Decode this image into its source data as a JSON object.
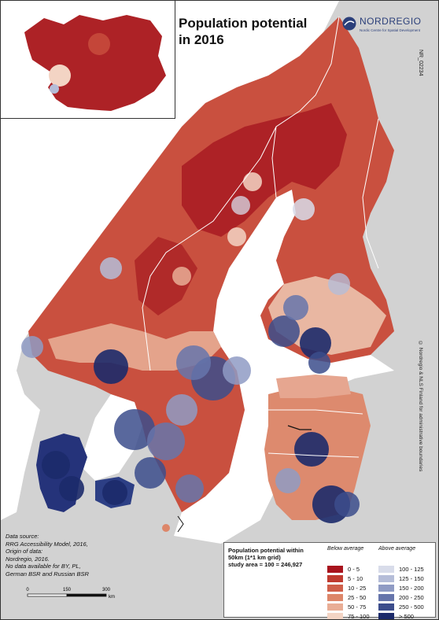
{
  "title": "Population potential\nin 2016",
  "logo": {
    "name": "NORDREGIO",
    "subtitle": "Nordic Centre for Spatial Development"
  },
  "map_id": "NR_02234",
  "credit": "© Nordregio & NLS Finland for administrative boundaries",
  "source_lines": [
    "Data source:",
    "RRG Accessibility Model, 2016,",
    "Origin of data:",
    "Nordregio, 2016.",
    "No data available for BY, PL,",
    "German BSR and Russian BSR"
  ],
  "scalebar": {
    "ticks": [
      "0",
      "150",
      "300"
    ],
    "unit": "km"
  },
  "legend": {
    "title_lines": [
      "Population potential within",
      "50km (1*1 km grid)",
      "study area = 100 = 246,927"
    ],
    "below_label": "Below average",
    "above_label": "Above average",
    "below": [
      {
        "label": "0 - 5",
        "color": "#a8131d"
      },
      {
        "label": "5 - 10",
        "color": "#bf3a2f"
      },
      {
        "label": "10 - 25",
        "color": "#cf5f4a"
      },
      {
        "label": "25 - 50",
        "color": "#dd8669"
      },
      {
        "label": "50 - 75",
        "color": "#e9ad95"
      },
      {
        "label": "75 - 100",
        "color": "#f3d4c4"
      }
    ],
    "above": [
      {
        "label": "100 - 125",
        "color": "#d8dcea"
      },
      {
        "label": "125 - 150",
        "color": "#b5bdd8"
      },
      {
        "label": "150 - 200",
        "color": "#8f9bc4"
      },
      {
        "label": "200 - 250",
        "color": "#6675ab"
      },
      {
        "label": "250 - 500",
        "color": "#3c4d8c"
      },
      {
        "label": "> 500",
        "color": "#1c2a6a"
      }
    ]
  },
  "colors": {
    "sea": "#ffffff",
    "land_nodata": "#d2d2d2",
    "border": "#ffffff"
  }
}
